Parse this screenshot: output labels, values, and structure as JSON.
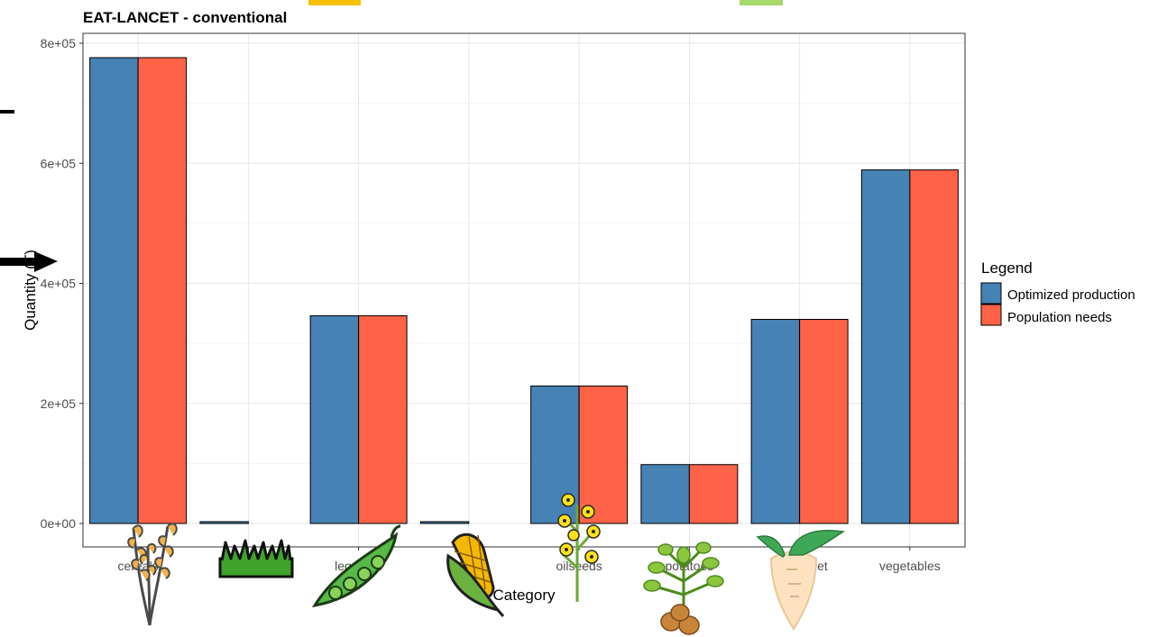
{
  "chart_data": {
    "type": "bar",
    "title": "EAT-LANCET - conventional",
    "xlabel": "Category",
    "ylabel": "Quantity (T)",
    "ylim": [
      0,
      800000
    ],
    "yticks": [
      "0e+00",
      "2e+05",
      "4e+05",
      "6e+05",
      "8e+05"
    ],
    "ytick_values": [
      0,
      200000,
      400000,
      600000,
      800000
    ],
    "grid": true,
    "categories": [
      "cereals",
      "fodder",
      "legumes",
      "maize",
      "oilseeds",
      "potatoes",
      "sugarbeet",
      "vegetables"
    ],
    "series": [
      {
        "name": "Optimized production",
        "color": "#4682b4",
        "values": [
          776000,
          3000,
          346000,
          3000,
          229000,
          98000,
          340000,
          589000
        ]
      },
      {
        "name": "Population needs",
        "color": "#ff6347",
        "values": [
          776000,
          0,
          346000,
          0,
          229000,
          98000,
          340000,
          589000
        ]
      }
    ],
    "legend": {
      "title": "Legend",
      "position": "right"
    },
    "icons": [
      "wheat-icon",
      "grass-icon",
      "peapod-icon",
      "corn-icon",
      "rapeseed-flower-icon",
      "potato-plant-icon",
      "sugarbeet-icon"
    ]
  }
}
